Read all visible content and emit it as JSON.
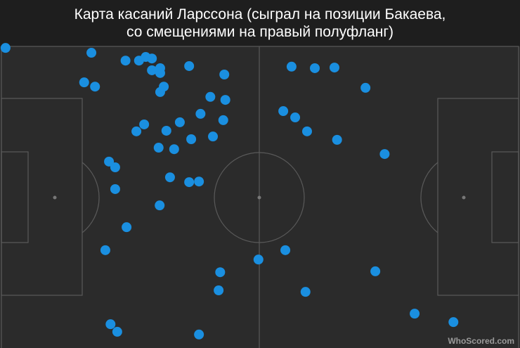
{
  "chart_data": {
    "type": "scatter",
    "title_lines": [
      "Карта касаний Ларссона (сыграл на позиции Бакаева,",
      "со смещениями на правый полуфланг)"
    ],
    "watermark": "WhoScored.com",
    "xlim": [
      0,
      100
    ],
    "ylim": [
      0,
      100
    ],
    "color": "#1a8fe0",
    "x": [
      0.8,
      17.4,
      24.0,
      26.6,
      27.9,
      29.1,
      30.7,
      29.1,
      30.7,
      36.3,
      43.1,
      16.0,
      18.1,
      31.4,
      30.7,
      40.4,
      43.3,
      38.5,
      42.9,
      34.5,
      27.6,
      31.9,
      26.1,
      36.7,
      40.9,
      30.4,
      33.4,
      20.8,
      22.0,
      32.6,
      36.3,
      38.2,
      22.0,
      30.6,
      24.2,
      20.1,
      42.3,
      42.0,
      21.1,
      22.4,
      38.2,
      56.1,
      60.6,
      64.4,
      70.4,
      54.5,
      56.8,
      59.1,
      64.9,
      74.1,
      54.9,
      49.7,
      72.3,
      58.8,
      79.9,
      87.4
    ],
    "values": [
      99.5,
      97.9,
      95.3,
      95.3,
      96.5,
      96.0,
      92.8,
      92.1,
      91.2,
      93.5,
      90.7,
      88.1,
      86.7,
      86.7,
      84.9,
      83.3,
      82.3,
      77.7,
      75.6,
      74.9,
      74.2,
      72.1,
      71.9,
      69.3,
      70.2,
      66.5,
      66.0,
      61.9,
      60.0,
      56.7,
      55.1,
      55.3,
      52.8,
      47.4,
      40.2,
      32.6,
      25.3,
      19.3,
      8.1,
      5.6,
      4.7,
      93.3,
      92.8,
      93.0,
      86.3,
      78.6,
      76.5,
      71.9,
      69.1,
      64.4,
      32.6,
      29.5,
      25.6,
      18.8,
      11.6,
      8.8
    ]
  }
}
